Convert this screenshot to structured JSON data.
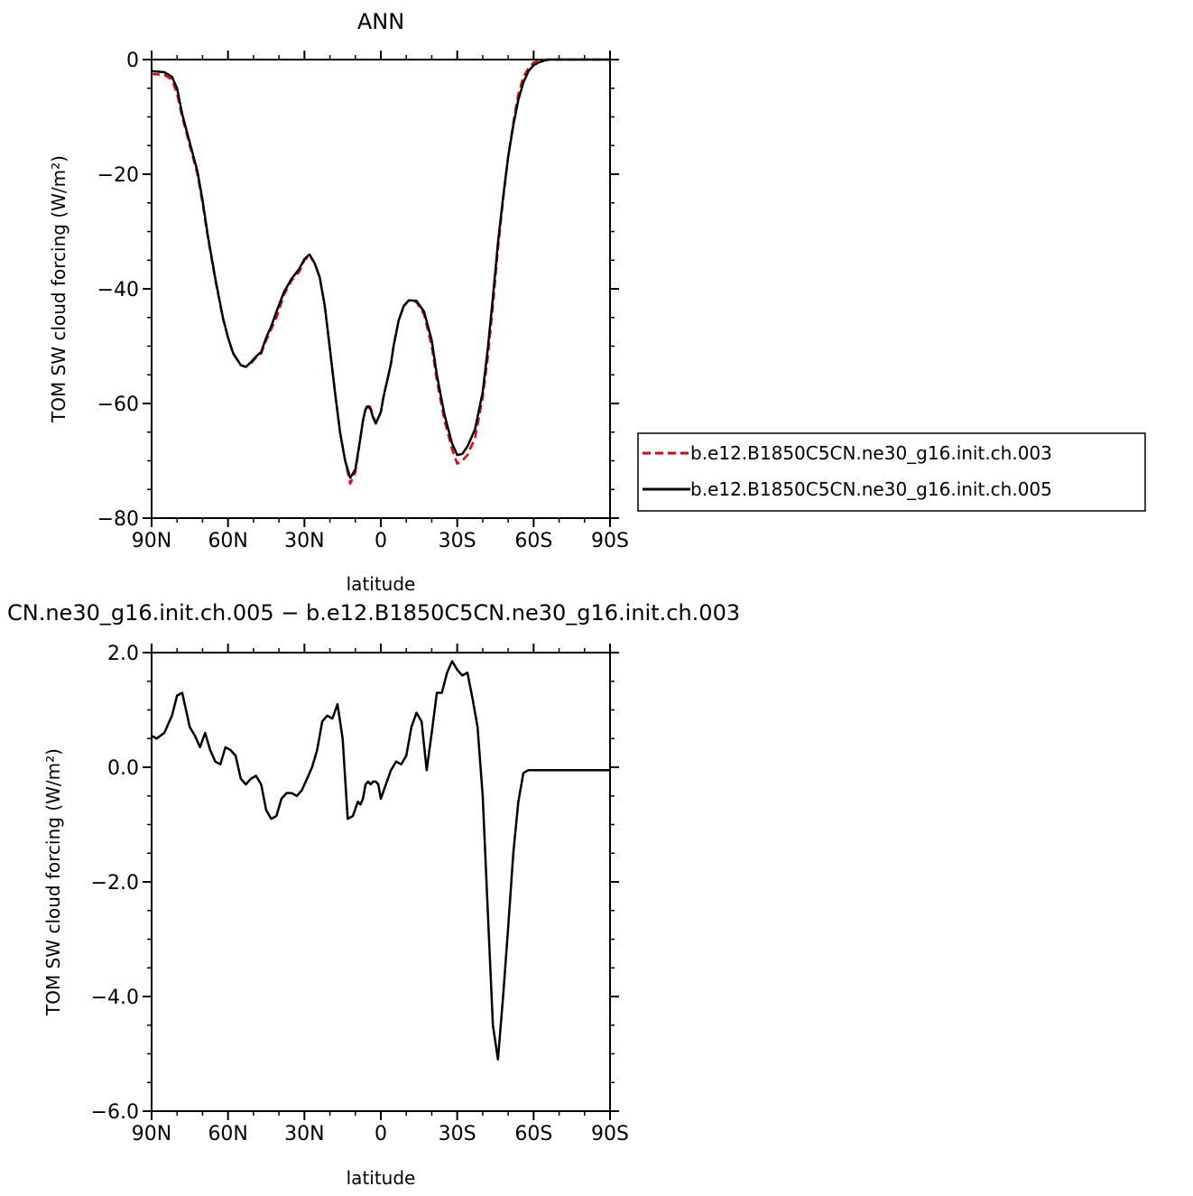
{
  "chart_data": [
    {
      "type": "line",
      "title": "ANN",
      "xlabel": "latitude",
      "ylabel": "TOM SW cloud forcing (W/m²)",
      "x_ticks": [
        "90N",
        "60N",
        "30N",
        "0",
        "30S",
        "60S",
        "90S"
      ],
      "x_tick_values": [
        90,
        60,
        30,
        0,
        -30,
        -60,
        -90
      ],
      "xlim": [
        90,
        -90
      ],
      "ylim": [
        -80,
        0
      ],
      "y_ticks": [
        "−80",
        "−60",
        "−40",
        "−20",
        "0"
      ],
      "y_tick_values": [
        -80,
        -60,
        -40,
        -20,
        0
      ],
      "legend": {
        "placement": "right"
      },
      "series": [
        {
          "name": "b.e12.B1850C5CN.ne30_g16.init.ch.003",
          "color": "#e8000b",
          "dash": "dashed",
          "x": [
            90,
            85,
            82,
            80,
            78,
            75,
            72,
            70,
            68,
            65,
            62,
            60,
            58,
            55,
            53,
            51,
            49,
            47,
            45,
            43,
            41,
            38,
            35,
            32,
            30,
            28,
            26,
            24,
            22,
            20,
            18,
            16,
            14,
            12,
            10,
            8,
            7,
            6,
            5,
            4,
            3,
            2,
            1,
            0,
            -1,
            -2,
            -3,
            -4,
            -5,
            -7,
            -9,
            -11,
            -14,
            -17,
            -20,
            -22,
            -25,
            -28,
            -30,
            -32,
            -34,
            -37,
            -40,
            -42,
            -44,
            -46,
            -48,
            -50,
            -52,
            -54,
            -56,
            -58,
            -60,
            -62,
            -64,
            -66,
            -68,
            -70,
            -72,
            -74,
            -77,
            -80,
            -85,
            -90
          ],
          "values": [
            -2.5,
            -2.7,
            -3.5,
            -6,
            -10,
            -15,
            -20,
            -25,
            -30.8,
            -38.5,
            -45.2,
            -48.5,
            -51.3,
            -53.3,
            -53.6,
            -53,
            -52,
            -51.3,
            -49,
            -47,
            -45,
            -41,
            -38.5,
            -37,
            -35,
            -34.2,
            -35.5,
            -38,
            -43,
            -50.5,
            -58,
            -65,
            -70,
            -74,
            -72,
            -66,
            -63,
            -61,
            -60,
            -60.8,
            -62.2,
            -63.3,
            -62.5,
            -61.5,
            -59,
            -57,
            -55,
            -53,
            -50,
            -45.5,
            -43,
            -42,
            -42.3,
            -44.5,
            -50,
            -56,
            -63,
            -68,
            -70.5,
            -70,
            -69,
            -66,
            -59,
            -52,
            -43,
            -33,
            -24.5,
            -17,
            -11,
            -6,
            -3,
            -1.5,
            -0.5,
            -0.2,
            0,
            0,
            0,
            0,
            0,
            0,
            0,
            0,
            0,
            0
          ]
        },
        {
          "name": "b.e12.B1850C5CN.ne30_g16.init.ch.005",
          "color": "#000000",
          "dash": "solid",
          "x": [
            90,
            85,
            82,
            80,
            78,
            75,
            72,
            70,
            68,
            65,
            62,
            60,
            58,
            55,
            53,
            51,
            49,
            47,
            45,
            43,
            41,
            38,
            35,
            32,
            30,
            28,
            26,
            24,
            22,
            20,
            18,
            16,
            14,
            12,
            10,
            8,
            7,
            6,
            5,
            4,
            3,
            2,
            1,
            0,
            -1,
            -2,
            -3,
            -4,
            -5,
            -7,
            -9,
            -11,
            -14,
            -17,
            -20,
            -22,
            -25,
            -28,
            -30,
            -32,
            -34,
            -37,
            -40,
            -42,
            -44,
            -46,
            -48,
            -50,
            -52,
            -54,
            -56,
            -58,
            -60,
            -62,
            -64,
            -66,
            -68,
            -70,
            -72,
            -74,
            -77,
            -80,
            -85,
            -90
          ],
          "values": [
            -2,
            -2.2,
            -3,
            -5,
            -9.5,
            -14.5,
            -19.5,
            -24.5,
            -30.5,
            -38.2,
            -45,
            -48.5,
            -51.2,
            -53.3,
            -53.6,
            -52.8,
            -51.8,
            -51,
            -48.5,
            -46.5,
            -44,
            -40.5,
            -38.2,
            -36.5,
            -34.8,
            -34,
            -35.5,
            -38,
            -43,
            -50.5,
            -58,
            -65,
            -70,
            -73,
            -71.5,
            -66,
            -63,
            -61,
            -60.5,
            -61,
            -62.5,
            -63.5,
            -62.5,
            -61.5,
            -59,
            -57,
            -55,
            -53,
            -50,
            -45.5,
            -43,
            -42,
            -42.1,
            -44,
            -49,
            -55,
            -62,
            -67,
            -69,
            -68.8,
            -67.5,
            -64.5,
            -58,
            -50.5,
            -41.5,
            -32,
            -24,
            -17,
            -11.5,
            -7,
            -4,
            -2,
            -1,
            -0.5,
            -0.2,
            0,
            0,
            0,
            0,
            0,
            0,
            0,
            0,
            0
          ]
        }
      ]
    },
    {
      "type": "line",
      "title": "CN.ne30_g16.init.ch.005 − b.e12.B1850C5CN.ne30_g16.init.ch.003",
      "xlabel": "latitude",
      "ylabel": "TOM SW cloud forcing (W/m²)",
      "x_ticks": [
        "90N",
        "60N",
        "30N",
        "0",
        "30S",
        "60S",
        "90S"
      ],
      "x_tick_values": [
        90,
        60,
        30,
        0,
        -30,
        -60,
        -90
      ],
      "xlim": [
        90,
        -90
      ],
      "ylim": [
        -6,
        2
      ],
      "y_ticks": [
        "−6.0",
        "−4.0",
        "−2.0",
        "0.0",
        "2.0"
      ],
      "y_tick_values": [
        -6,
        -4,
        -2,
        0,
        2
      ],
      "series": [
        {
          "name": "",
          "color": "#000000",
          "dash": "solid",
          "x": [
            90,
            88,
            85,
            82,
            80,
            78,
            77,
            76,
            75,
            73,
            71,
            69,
            67,
            65,
            63,
            61,
            59,
            57,
            55,
            53,
            51,
            49,
            47,
            45,
            43,
            41,
            39,
            37,
            35,
            33,
            31,
            29,
            27,
            25,
            23,
            21,
            19,
            17,
            15,
            13,
            11,
            9,
            8,
            7,
            6,
            5,
            4,
            3,
            2,
            1,
            0,
            -2,
            -4,
            -6,
            -8,
            -10,
            -12,
            -14,
            -16,
            -18,
            -20,
            -22,
            -24,
            -26,
            -28,
            -30,
            -32,
            -34,
            -36,
            -38,
            -40,
            -42,
            -44,
            -46,
            -48,
            -50,
            -52,
            -54,
            -56,
            -58,
            -60,
            -62,
            -64,
            -66,
            -67,
            -68,
            -70,
            -72,
            -74,
            -76,
            -78,
            -80,
            -82,
            -84,
            -86,
            -88,
            -90
          ],
          "values": [
            0.55,
            0.5,
            0.6,
            0.9,
            1.25,
            1.3,
            1.1,
            0.9,
            0.7,
            0.55,
            0.35,
            0.6,
            0.3,
            0.1,
            0.05,
            0.35,
            0.3,
            0.2,
            -0.2,
            -0.3,
            -0.2,
            -0.15,
            -0.3,
            -0.75,
            -0.9,
            -0.85,
            -0.55,
            -0.45,
            -0.45,
            -0.5,
            -0.4,
            -0.2,
            0.0,
            0.3,
            0.8,
            0.9,
            0.85,
            1.1,
            0.5,
            -0.9,
            -0.85,
            -0.6,
            -0.65,
            -0.55,
            -0.3,
            -0.25,
            -0.3,
            -0.25,
            -0.25,
            -0.3,
            -0.55,
            -0.3,
            -0.05,
            0.1,
            0.05,
            0.2,
            0.7,
            0.95,
            0.8,
            -0.05,
            0.6,
            1.3,
            1.3,
            1.65,
            1.85,
            1.7,
            1.6,
            1.65,
            1.2,
            0.7,
            -0.5,
            -2.5,
            -4.5,
            -5.1,
            -4.0,
            -2.8,
            -1.5,
            -0.6,
            -0.1,
            -0.05,
            -0.05,
            -0.05,
            -0.05,
            -0.05,
            -0.05,
            -0.05,
            -0.05,
            -0.05,
            -0.05,
            -0.05,
            -0.05,
            -0.05,
            -0.05,
            -0.05,
            -0.05,
            -0.05,
            -0.05
          ],
          "x_note": ""
        }
      ]
    }
  ]
}
